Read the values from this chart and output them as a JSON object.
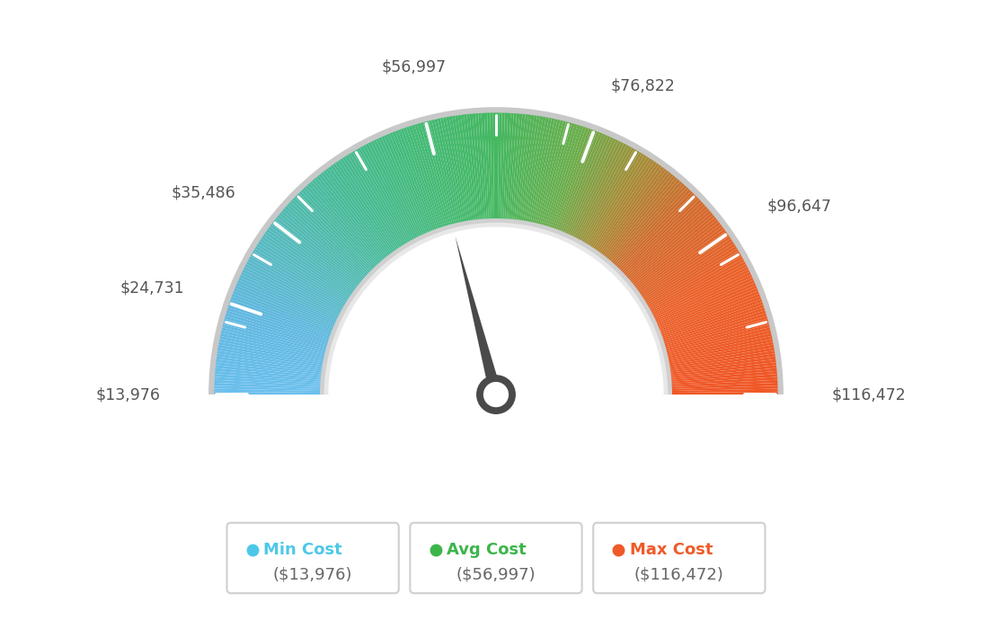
{
  "min_value": 13976,
  "avg_value": 56997,
  "max_value": 116472,
  "labels": [
    "$13,976",
    "$24,731",
    "$35,486",
    "$56,997",
    "$76,822",
    "$96,647",
    "$116,472"
  ],
  "label_values": [
    13976,
    24731,
    35486,
    56997,
    76822,
    96647,
    116472
  ],
  "min_cost_label": "Min Cost",
  "avg_cost_label": "Avg Cost",
  "max_cost_label": "Max Cost",
  "min_cost_value": "($13,976)",
  "avg_cost_value": "($56,997)",
  "max_cost_value": "($116,472)",
  "min_color": "#4dc8e8",
  "avg_color": "#3cb54a",
  "max_color": "#f05a28",
  "bg_color": "#ffffff",
  "color_stops": [
    [
      0.0,
      [
        0.42,
        0.75,
        0.93
      ]
    ],
    [
      0.1,
      [
        0.38,
        0.72,
        0.88
      ]
    ],
    [
      0.2,
      [
        0.33,
        0.73,
        0.73
      ]
    ],
    [
      0.3,
      [
        0.28,
        0.73,
        0.58
      ]
    ],
    [
      0.4,
      [
        0.27,
        0.73,
        0.47
      ]
    ],
    [
      0.5,
      [
        0.27,
        0.72,
        0.38
      ]
    ],
    [
      0.6,
      [
        0.42,
        0.68,
        0.3
      ]
    ],
    [
      0.68,
      [
        0.65,
        0.55,
        0.22
      ]
    ],
    [
      0.75,
      [
        0.82,
        0.42,
        0.18
      ]
    ],
    [
      0.85,
      [
        0.92,
        0.38,
        0.16
      ]
    ],
    [
      1.0,
      [
        0.94,
        0.34,
        0.15
      ]
    ]
  ]
}
